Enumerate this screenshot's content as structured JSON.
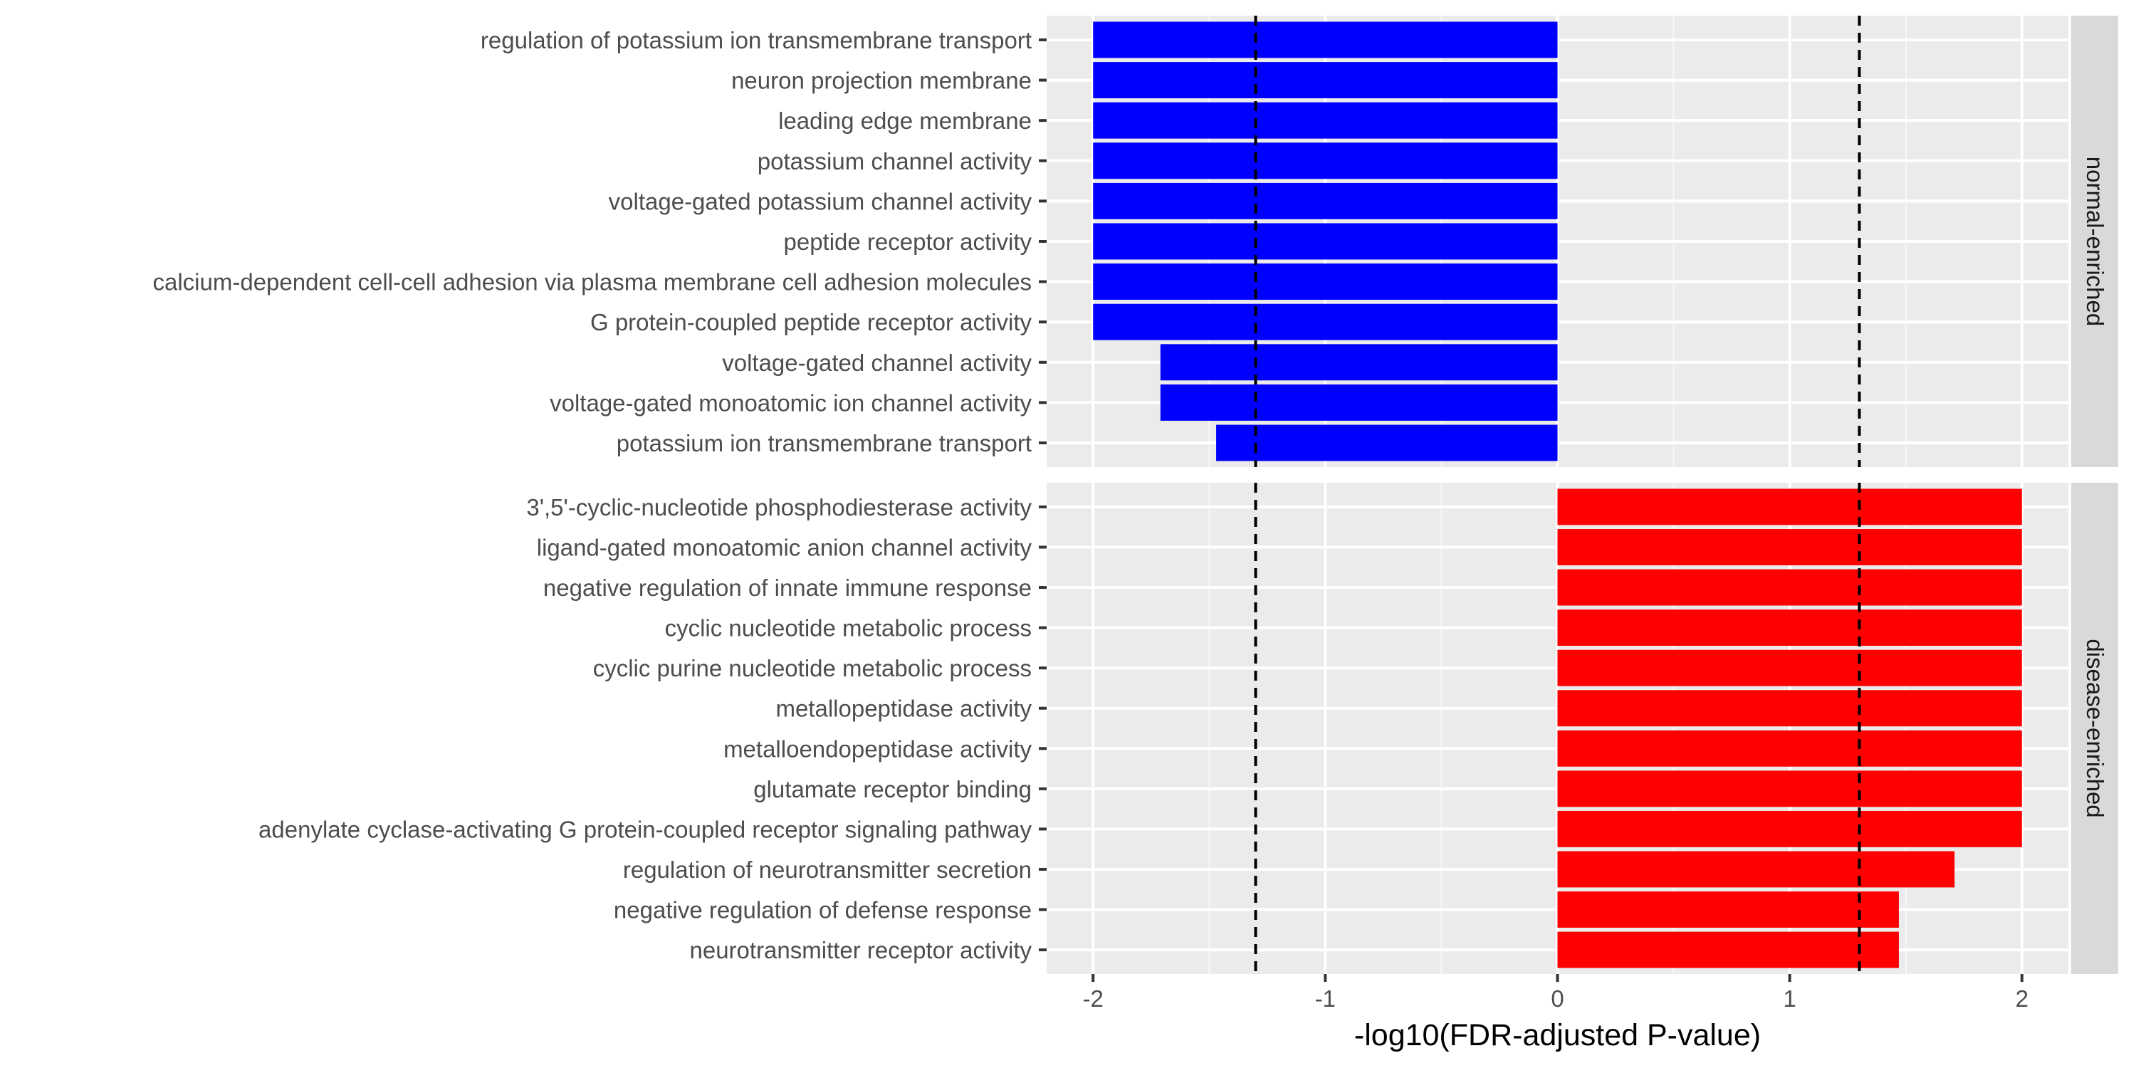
{
  "chart_data": {
    "type": "bar",
    "orientation": "horizontal",
    "faceted": true,
    "xlabel": "-log10(FDR-adjusted P-value)",
    "xlim": [
      -2.2,
      2.2
    ],
    "xticks": [
      -2,
      -1,
      0,
      1,
      2
    ],
    "tick_labels": [
      "-2",
      "-1",
      "0",
      "1",
      "2"
    ],
    "reference_lines": [
      -1.3,
      1.3
    ],
    "grid": true,
    "panels": [
      {
        "strip": "normal-enriched",
        "color": "#0000FF",
        "bars": [
          {
            "term": "regulation of potassium ion transmembrane transport",
            "value": -2.0
          },
          {
            "term": "neuron projection membrane",
            "value": -2.0
          },
          {
            "term": "leading edge membrane",
            "value": -2.0
          },
          {
            "term": "potassium channel activity",
            "value": -2.0
          },
          {
            "term": "voltage-gated potassium channel activity",
            "value": -2.0
          },
          {
            "term": "peptide receptor activity",
            "value": -2.0
          },
          {
            "term": "calcium-dependent cell-cell adhesion via plasma membrane cell adhesion molecules",
            "value": -2.0
          },
          {
            "term": "G protein-coupled peptide receptor activity",
            "value": -2.0
          },
          {
            "term": "voltage-gated channel activity",
            "value": -1.71
          },
          {
            "term": "voltage-gated monoatomic ion channel activity",
            "value": -1.71
          },
          {
            "term": "potassium ion transmembrane transport",
            "value": -1.47
          }
        ]
      },
      {
        "strip": "disease-enriched",
        "color": "#FF0000",
        "bars": [
          {
            "term": "3',5'-cyclic-nucleotide phosphodiesterase activity",
            "value": 2.0
          },
          {
            "term": "ligand-gated monoatomic anion channel activity",
            "value": 2.0
          },
          {
            "term": "negative regulation of innate immune response",
            "value": 2.0
          },
          {
            "term": "cyclic nucleotide metabolic process",
            "value": 2.0
          },
          {
            "term": "cyclic purine nucleotide metabolic process",
            "value": 2.0
          },
          {
            "term": "metallopeptidase activity",
            "value": 2.0
          },
          {
            "term": "metalloendopeptidase activity",
            "value": 2.0
          },
          {
            "term": "glutamate receptor binding",
            "value": 2.0
          },
          {
            "term": "adenylate cyclase-activating G protein-coupled receptor signaling pathway",
            "value": 2.0
          },
          {
            "term": "regulation of neurotransmitter secretion",
            "value": 1.71
          },
          {
            "term": "negative regulation of defense response",
            "value": 1.47
          },
          {
            "term": "neurotransmitter receptor activity",
            "value": 1.47
          }
        ]
      }
    ]
  }
}
